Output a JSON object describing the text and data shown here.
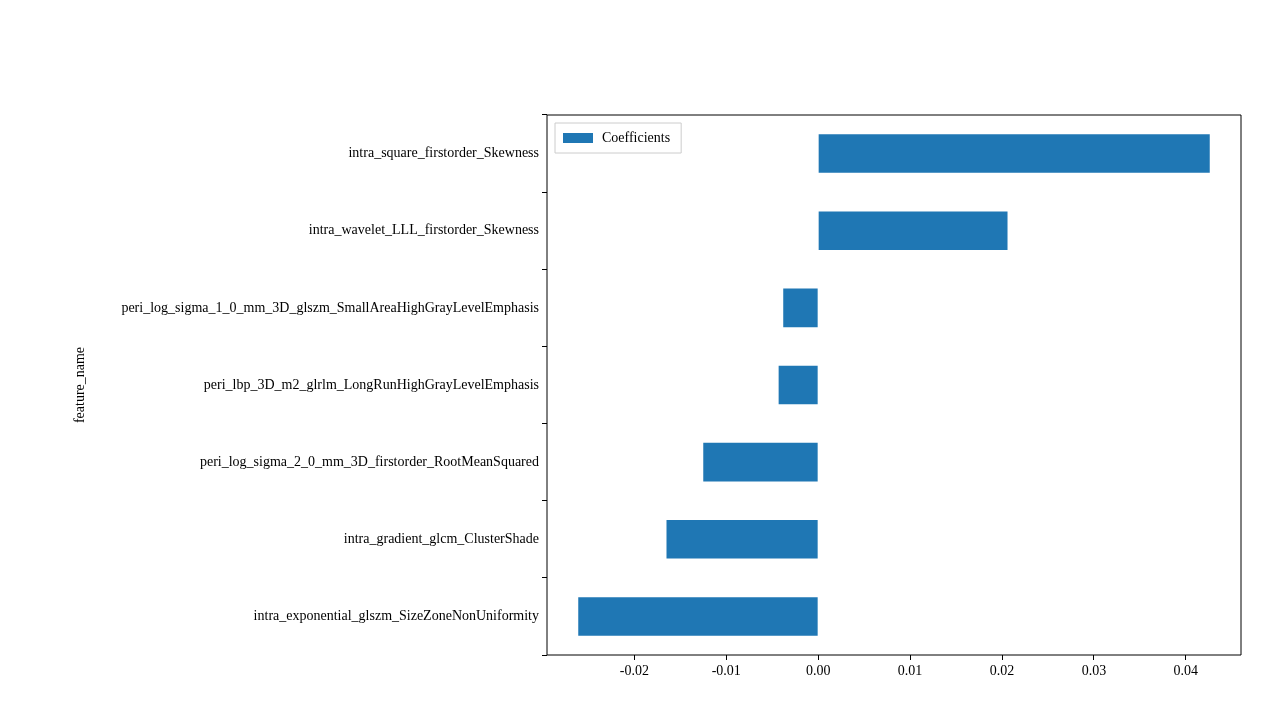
{
  "chart_data": {
    "type": "bar",
    "orientation": "horizontal",
    "ylabel": "feature_name",
    "categories": [
      "intra_square_firstorder_Skewness",
      "intra_wavelet_LLL_firstorder_Skewness",
      "peri_log_sigma_1_0_mm_3D_glszm_SmallAreaHighGrayLevelEmphasis",
      "peri_lbp_3D_m2_glrlm_LongRunHighGrayLevelEmphasis",
      "peri_log_sigma_2_0_mm_3D_firstorder_RootMeanSquared",
      "intra_gradient_glcm_ClusterShade",
      "intra_exponential_glszm_SizeZoneNonUniformity"
    ],
    "series": [
      {
        "name": "Coefficients",
        "color": "#1f77b4",
        "values": [
          0.0426,
          0.0206,
          -0.0038,
          -0.0043,
          -0.0125,
          -0.0165,
          -0.0261
        ]
      }
    ],
    "xlim": [
      -0.0295,
      0.046
    ],
    "xticks": [
      {
        "value": -0.02,
        "label": "-0.02"
      },
      {
        "value": -0.01,
        "label": "-0.01"
      },
      {
        "value": 0,
        "label": "0.00"
      },
      {
        "value": 0.01,
        "label": "0.01"
      },
      {
        "value": 0.02,
        "label": "0.02"
      },
      {
        "value": 0.03,
        "label": "0.03"
      },
      {
        "value": 0.04,
        "label": "0.04"
      }
    ],
    "legend": "top left",
    "grid": false
  }
}
